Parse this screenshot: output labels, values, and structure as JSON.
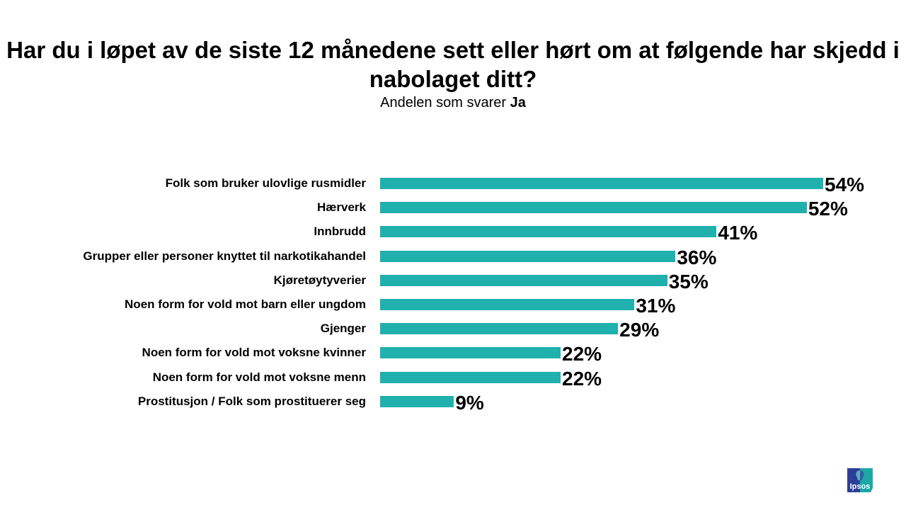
{
  "chart_data": {
    "type": "bar",
    "orientation": "horizontal",
    "title": "Har du i løpet av de siste 12 månedene sett eller hørt om at følgende har skjedd i nabolaget ditt?",
    "subtitle_prefix": "Andelen som svarer",
    "subtitle_bold": "Ja",
    "categories": [
      "Folk som bruker ulovlige rusmidler",
      "Hærverk",
      "Innbrudd",
      "Grupper eller personer knyttet til narkotikahandel",
      "Kjøretøytyverier",
      "Noen form for vold mot barn eller ungdom",
      "Gjenger",
      "Noen form for vold mot voksne kvinner",
      "Noen form for vold mot voksne menn",
      "Prostitusjon / Folk som prostituerer seg"
    ],
    "values": [
      54,
      52,
      41,
      36,
      35,
      31,
      29,
      22,
      22,
      9
    ],
    "value_labels": [
      "54%",
      "52%",
      "41%",
      "36%",
      "35%",
      "31%",
      "29%",
      "22%",
      "22%",
      "9%"
    ],
    "unit": "%",
    "xlim": [
      0,
      54
    ],
    "grid": false,
    "bar_color": "#20B0AD"
  },
  "logo": {
    "text": "Ipsos",
    "colors": [
      "#2D3E99",
      "#1CA8A4"
    ]
  }
}
